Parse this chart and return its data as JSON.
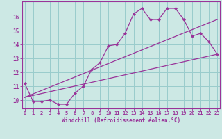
{
  "xlabel": "Windchill (Refroidissement éolien,°C)",
  "bg_color": "#cce8e4",
  "grid_color": "#99cccc",
  "line_color": "#993399",
  "x_ticks": [
    0,
    1,
    2,
    3,
    4,
    5,
    6,
    7,
    8,
    9,
    10,
    11,
    12,
    13,
    14,
    15,
    16,
    17,
    18,
    19,
    20,
    21,
    22,
    23
  ],
  "y_ticks": [
    10,
    11,
    12,
    13,
    14,
    15,
    16
  ],
  "ylim": [
    9.4,
    17.1
  ],
  "xlim": [
    -0.3,
    23.3
  ],
  "line1_x": [
    0,
    1,
    2,
    3,
    4,
    5,
    6,
    7,
    8,
    9,
    10,
    11,
    12,
    13,
    14,
    15,
    16,
    17,
    18,
    19,
    20,
    21,
    22,
    23
  ],
  "line1_y": [
    11.2,
    9.9,
    9.9,
    10.0,
    9.7,
    9.7,
    10.5,
    11.0,
    12.2,
    12.7,
    13.9,
    14.0,
    14.8,
    16.2,
    16.6,
    15.8,
    15.8,
    16.6,
    16.6,
    15.8,
    14.6,
    14.8,
    14.2,
    13.3
  ],
  "line2_x": [
    0,
    23
  ],
  "line2_y": [
    10.2,
    13.3
  ],
  "line3_x": [
    0,
    23
  ],
  "line3_y": [
    10.2,
    15.8
  ],
  "tick_fontsize": 5.0,
  "xlabel_fontsize": 5.5
}
